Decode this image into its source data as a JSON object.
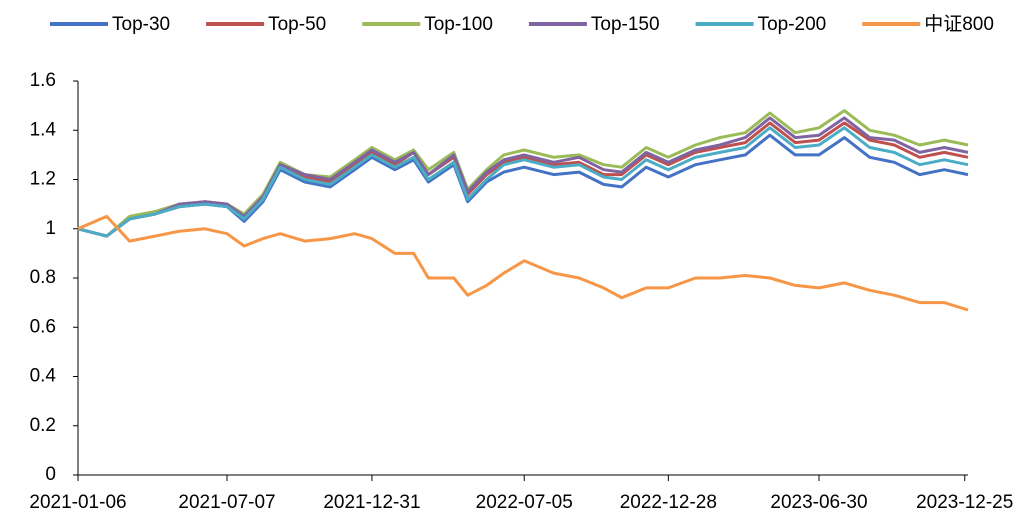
{
  "chart_data": {
    "type": "line",
    "x": [
      "2021-01-06",
      "2021-02-10",
      "2021-03-10",
      "2021-04-10",
      "2021-05-10",
      "2021-06-10",
      "2021-07-07",
      "2021-07-28",
      "2021-08-20",
      "2021-09-10",
      "2021-10-10",
      "2021-11-10",
      "2021-12-10",
      "2021-12-31",
      "2022-01-28",
      "2022-02-20",
      "2022-03-10",
      "2022-04-10",
      "2022-04-27",
      "2022-05-20",
      "2022-06-10",
      "2022-07-05",
      "2022-08-10",
      "2022-09-10",
      "2022-10-10",
      "2022-11-01",
      "2022-12-01",
      "2022-12-28",
      "2023-01-30",
      "2023-03-01",
      "2023-04-01",
      "2023-05-01",
      "2023-06-01",
      "2023-06-30",
      "2023-07-31",
      "2023-08-31",
      "2023-09-30",
      "2023-10-31",
      "2023-11-30",
      "2023-12-29"
    ],
    "series": [
      {
        "name": "Top-30",
        "color": "#4472c4",
        "values": [
          1.0,
          0.97,
          1.04,
          1.06,
          1.09,
          1.1,
          1.09,
          1.03,
          1.11,
          1.24,
          1.19,
          1.17,
          1.24,
          1.29,
          1.24,
          1.28,
          1.19,
          1.26,
          1.11,
          1.19,
          1.23,
          1.25,
          1.22,
          1.23,
          1.18,
          1.17,
          1.25,
          1.21,
          1.26,
          1.28,
          1.3,
          1.38,
          1.3,
          1.3,
          1.37,
          1.29,
          1.27,
          1.22,
          1.24,
          1.22
        ]
      },
      {
        "name": "Top-50",
        "color": "#c0504d",
        "values": [
          1.0,
          0.97,
          1.04,
          1.06,
          1.09,
          1.11,
          1.1,
          1.05,
          1.13,
          1.26,
          1.21,
          1.19,
          1.26,
          1.31,
          1.26,
          1.31,
          1.22,
          1.29,
          1.14,
          1.22,
          1.27,
          1.29,
          1.26,
          1.27,
          1.22,
          1.22,
          1.3,
          1.26,
          1.31,
          1.33,
          1.35,
          1.43,
          1.35,
          1.36,
          1.43,
          1.36,
          1.34,
          1.29,
          1.31,
          1.29
        ]
      },
      {
        "name": "Top-100",
        "color": "#9bbb59",
        "values": [
          1.0,
          0.97,
          1.05,
          1.07,
          1.1,
          1.11,
          1.1,
          1.06,
          1.14,
          1.27,
          1.22,
          1.21,
          1.28,
          1.33,
          1.28,
          1.32,
          1.24,
          1.31,
          1.16,
          1.24,
          1.3,
          1.32,
          1.29,
          1.3,
          1.26,
          1.25,
          1.33,
          1.29,
          1.34,
          1.37,
          1.39,
          1.47,
          1.39,
          1.41,
          1.48,
          1.4,
          1.38,
          1.34,
          1.36,
          1.34
        ]
      },
      {
        "name": "Top-150",
        "color": "#8064a2",
        "values": [
          1.0,
          0.97,
          1.04,
          1.06,
          1.1,
          1.11,
          1.1,
          1.05,
          1.13,
          1.26,
          1.22,
          1.2,
          1.27,
          1.32,
          1.27,
          1.31,
          1.22,
          1.3,
          1.15,
          1.23,
          1.28,
          1.3,
          1.27,
          1.29,
          1.24,
          1.23,
          1.31,
          1.27,
          1.32,
          1.34,
          1.37,
          1.45,
          1.37,
          1.38,
          1.45,
          1.37,
          1.36,
          1.31,
          1.33,
          1.31
        ]
      },
      {
        "name": "Top-200",
        "color": "#4bacc6",
        "values": [
          1.0,
          0.97,
          1.04,
          1.06,
          1.09,
          1.1,
          1.09,
          1.04,
          1.12,
          1.25,
          1.2,
          1.18,
          1.25,
          1.3,
          1.25,
          1.29,
          1.2,
          1.27,
          1.12,
          1.2,
          1.26,
          1.28,
          1.25,
          1.26,
          1.21,
          1.2,
          1.28,
          1.24,
          1.29,
          1.31,
          1.33,
          1.41,
          1.33,
          1.34,
          1.41,
          1.33,
          1.31,
          1.26,
          1.28,
          1.26
        ]
      },
      {
        "name": "中证800",
        "color": "#f79646",
        "values": [
          1.0,
          1.05,
          0.95,
          0.97,
          0.99,
          1.0,
          0.98,
          0.93,
          0.96,
          0.98,
          0.95,
          0.96,
          0.98,
          0.96,
          0.9,
          0.9,
          0.8,
          0.8,
          0.73,
          0.77,
          0.82,
          0.87,
          0.82,
          0.8,
          0.76,
          0.72,
          0.76,
          0.76,
          0.8,
          0.8,
          0.81,
          0.8,
          0.77,
          0.76,
          0.78,
          0.75,
          0.73,
          0.7,
          0.7,
          0.67
        ]
      }
    ],
    "xlim": [
      "2021-01-06",
      "2023-12-29"
    ],
    "xticks": [
      "2021-01-06",
      "2021-07-07",
      "2021-12-31",
      "2022-07-05",
      "2022-12-28",
      "2023-06-30",
      "2023-12-25"
    ],
    "ylim": [
      0,
      1.6
    ],
    "yticks": [
      0,
      0.2,
      0.4,
      0.6,
      0.8,
      1,
      1.2,
      1.4,
      1.6
    ],
    "legend": "top"
  }
}
